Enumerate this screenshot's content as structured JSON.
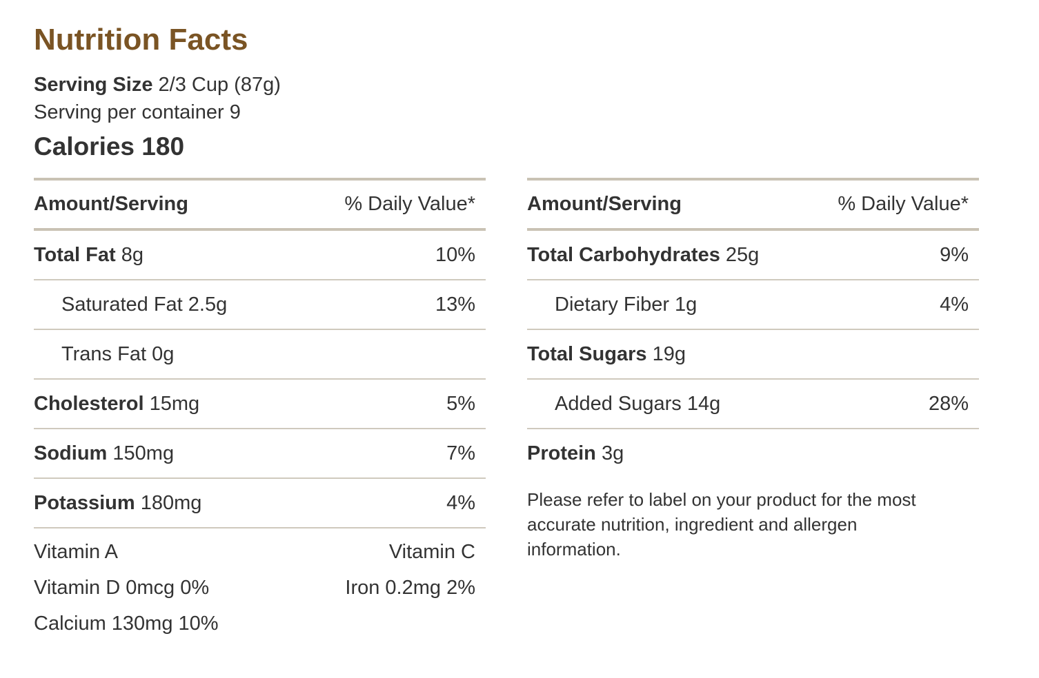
{
  "title": "Nutrition Facts",
  "serving": {
    "size_label": "Serving Size",
    "size_value": "2/3 Cup (87g)",
    "per_container": "Serving per container 9"
  },
  "calories": "Calories 180",
  "colors": {
    "title": "#7a5424",
    "rule": "#c9c2b4",
    "text": "#333333"
  },
  "left_table": {
    "header_amount": "Amount/Serving",
    "header_dv": "% Daily Value*",
    "rows": [
      {
        "name": "Total Fat",
        "amount": "8g",
        "dv": "10%"
      },
      {
        "name": "Saturated Fat 2.5g",
        "amount": "",
        "dv": "13%"
      },
      {
        "name": "Trans Fat 0g",
        "amount": "",
        "dv": ""
      },
      {
        "name": "Cholesterol",
        "amount": "15mg",
        "dv": "5%"
      },
      {
        "name": "Sodium",
        "amount": "150mg",
        "dv": "7%"
      },
      {
        "name": "Potassium",
        "amount": "180mg",
        "dv": "4%"
      }
    ],
    "vitamins": [
      {
        "left": "Vitamin A",
        "right": "Vitamin C"
      },
      {
        "left": "Vitamin D 0mcg 0%",
        "right": "Iron 0.2mg 2%"
      },
      {
        "left": "Calcium 130mg 10%",
        "right": ""
      }
    ]
  },
  "right_table": {
    "header_amount": "Amount/Serving",
    "header_dv": "% Daily Value*",
    "rows": [
      {
        "name": "Total Carbohydrates",
        "amount": "25g",
        "dv": "9%"
      },
      {
        "name": "Dietary Fiber 1g",
        "amount": "",
        "dv": "4%"
      },
      {
        "name": "Total Sugars",
        "amount": "19g",
        "dv": ""
      },
      {
        "name": "Added Sugars 14g",
        "amount": "",
        "dv": "28%"
      },
      {
        "name": "Protein",
        "amount": "3g",
        "dv": ""
      }
    ],
    "disclaimer": "Please refer to label on your product for the most accurate nutrition, ingredient and allergen information."
  }
}
